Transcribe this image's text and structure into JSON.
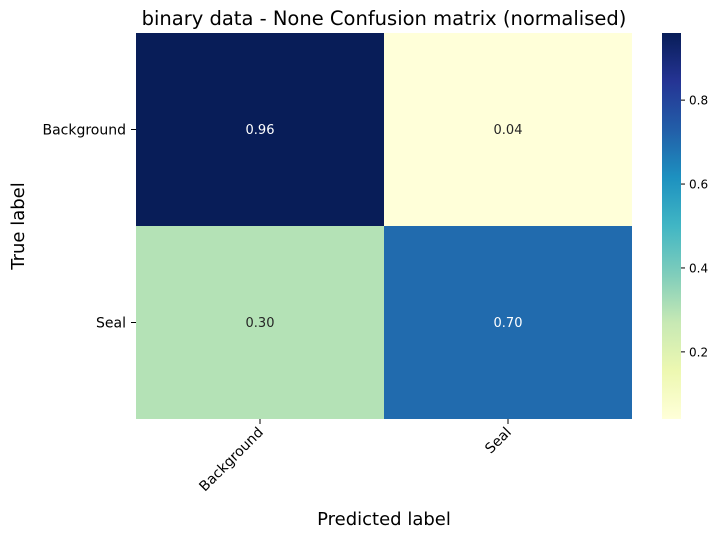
{
  "chart_data": {
    "type": "heatmap",
    "title": "binary data - None Confusion matrix (normalised)",
    "xlabel": "Predicted label",
    "ylabel": "True label",
    "x_categories": [
      "Background",
      "Seal"
    ],
    "y_categories": [
      "Background",
      "Seal"
    ],
    "values": [
      [
        0.96,
        0.04
      ],
      [
        0.3,
        0.7
      ]
    ],
    "value_labels": [
      [
        "0.96",
        "0.04"
      ],
      [
        "0.30",
        "0.70"
      ]
    ],
    "colormap": "YlGnBu",
    "colorbar": {
      "range": [
        0.04,
        0.96
      ],
      "ticks": [
        0.2,
        0.4,
        0.6,
        0.8
      ],
      "tick_labels": [
        "0.2",
        "0.4",
        "0.6",
        "0.8"
      ]
    },
    "grid": false,
    "colors": {
      "low": "#ffffd9",
      "high": "#081d58"
    }
  }
}
